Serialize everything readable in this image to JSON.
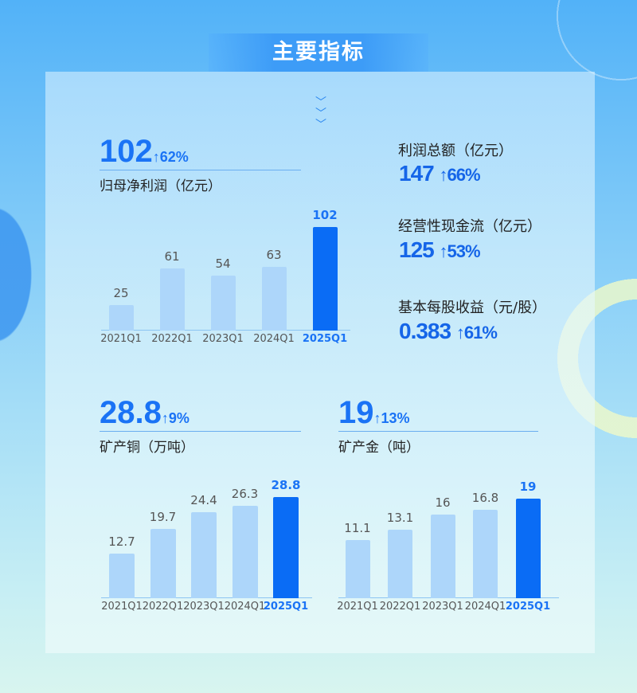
{
  "title": "主要指标",
  "colors": {
    "accent": "#1a73f5",
    "bar_highlight": "#0a6cf5",
    "bar": "#add6fa"
  },
  "kpis": [
    {
      "label": "利润总额（亿元）",
      "value": "147",
      "change": "↑66%"
    },
    {
      "label": "经营性现金流（亿元）",
      "value": "125",
      "change": "↑53%"
    },
    {
      "label": "基本每股收益（元/股）",
      "value": "0.383",
      "change": "↑61%"
    }
  ],
  "chart_data": [
    {
      "type": "bar",
      "headline": "102",
      "change": "↑62%",
      "title": "归母净利润（亿元）",
      "categories": [
        "2021Q1",
        "2022Q1",
        "2023Q1",
        "2024Q1",
        "2025Q1"
      ],
      "values": [
        25,
        61,
        54,
        63,
        102
      ],
      "value_labels": [
        "25",
        "61",
        "54",
        "63",
        "102"
      ],
      "highlight": "2025Q1"
    },
    {
      "type": "bar",
      "headline": "28.8",
      "change": "↑9%",
      "title": "矿产铜（万吨）",
      "categories": [
        "2021Q1",
        "2022Q1",
        "2023Q1",
        "2024Q1",
        "2025Q1"
      ],
      "values": [
        12.7,
        19.7,
        24.4,
        26.3,
        28.8
      ],
      "value_labels": [
        "12.7",
        "19.7",
        "24.4",
        "26.3",
        "28.8"
      ],
      "highlight": "2025Q1"
    },
    {
      "type": "bar",
      "headline": "19",
      "change": "↑13%",
      "title": "矿产金（吨）",
      "categories": [
        "2021Q1",
        "2022Q1",
        "2023Q1",
        "2024Q1",
        "2025Q1"
      ],
      "values": [
        11.1,
        13.1,
        16,
        16.8,
        19
      ],
      "value_labels": [
        "11.1",
        "13.1",
        "16",
        "16.8",
        "19"
      ],
      "highlight": "2025Q1"
    }
  ]
}
